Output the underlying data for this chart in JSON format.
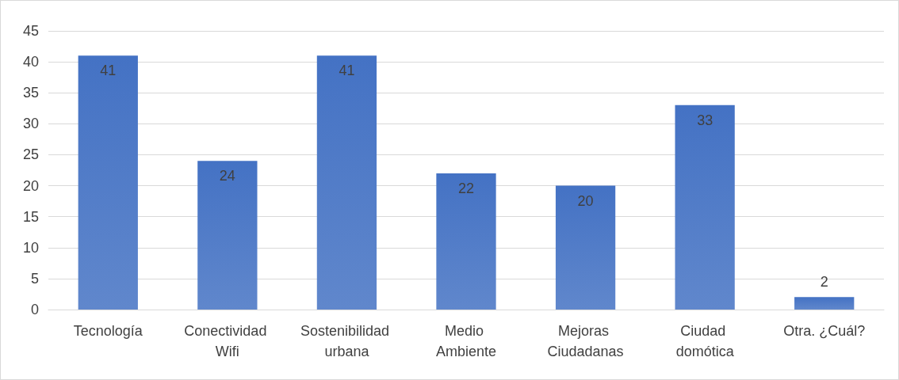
{
  "chart_data": {
    "type": "bar",
    "categories": [
      "Tecnología",
      "Conectividad Wifi",
      "Sostenibilidad urbana",
      "Medio Ambiente",
      "Mejoras Ciudadanas",
      "Ciudad domótica",
      "Otra. ¿Cuál?"
    ],
    "values": [
      41,
      24,
      41,
      22,
      20,
      33,
      2
    ],
    "color": "#4472c4",
    "ylim": [
      0,
      45
    ],
    "yticks": [
      0,
      5,
      10,
      15,
      20,
      25,
      30,
      35,
      40,
      45
    ],
    "grid": "y",
    "data_labels": true
  }
}
